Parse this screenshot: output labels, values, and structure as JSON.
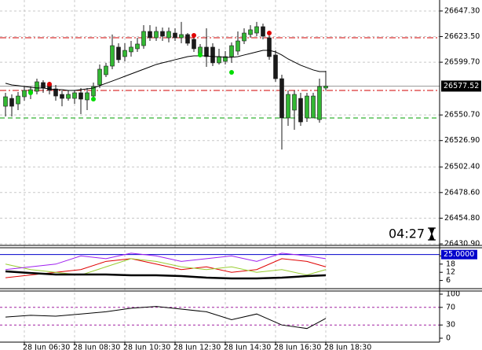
{
  "chart_data": [
    {
      "type": "candlestick",
      "categories": [
        null,
        null,
        null,
        "28 Jun 06:30",
        null,
        null,
        null,
        null,
        null,
        null,
        null,
        "28 Jun 08:30",
        null,
        null,
        null,
        null,
        null,
        null,
        null,
        "28 Jun 10:30",
        null,
        null,
        null,
        null,
        null,
        null,
        null,
        "28 Jun 12:30",
        null,
        null,
        null,
        null,
        null,
        null,
        null,
        "28 Jun 14:30",
        null,
        null,
        null,
        null,
        null,
        null,
        null,
        "28 Jun 16:30",
        null,
        null,
        null,
        null,
        null,
        null,
        null,
        "28 Jun 18:30"
      ],
      "open": [
        26558.8,
        26566.1,
        26561.0,
        26567.6,
        26571.3,
        26572.7,
        26580.8,
        26578.6,
        26574.9,
        26569.8,
        26566.1,
        26566.1,
        26571.3,
        26564.7,
        26568.3,
        26578.6,
        26588.1,
        26596.1,
        26613.7,
        26604.9,
        26609.3,
        26612.2,
        26615.1,
        26628.3,
        26622.4,
        26628.3,
        26622.4,
        26626.8,
        26622.4,
        26625.4,
        26621.0,
        26607.8,
        26613.7,
        26613.7,
        26599.1,
        26600.5,
        26604.9,
        26610.0,
        26619.5,
        26625.4,
        26626.8,
        26632.7,
        26622.4,
        26606.4,
        26584.4,
        26547.9,
        26555.2,
        26566.1,
        26547.9,
        26547.9,
        26546.4,
        26575.7
      ],
      "high": [
        26571.3,
        26569.8,
        26572.0,
        26577.1,
        26577.1,
        26584.4,
        26583.0,
        26581.5,
        26578.6,
        26573.5,
        26573.5,
        26573.5,
        26575.7,
        26575.7,
        26580.8,
        26597.6,
        26599.1,
        26625.4,
        26617.3,
        26617.3,
        26619.5,
        26622.4,
        26634.1,
        26634.1,
        26632.7,
        26631.9,
        26631.9,
        26631.2,
        26637.1,
        26626.8,
        26625.4,
        26616.6,
        26631.2,
        26617.3,
        26612.2,
        26610.0,
        26618.1,
        26628.3,
        26631.2,
        26634.1,
        26637.1,
        26635.6,
        26626.8,
        26610.7,
        26588.1,
        26573.5,
        26573.5,
        26571.3,
        26571.3,
        26571.3,
        26584.4,
        26591.7
      ],
      "low": [
        26549.3,
        26549.3,
        26555.2,
        26564.0,
        26565.4,
        26569.8,
        26571.3,
        26569.8,
        26564.0,
        26558.8,
        26564.0,
        26561.0,
        26551.5,
        26555.2,
        26564.0,
        26575.7,
        26585.9,
        26593.2,
        26599.1,
        26600.5,
        26604.9,
        26609.3,
        26612.2,
        26619.5,
        26619.5,
        26619.5,
        26618.1,
        26619.5,
        26617.3,
        26615.1,
        26609.3,
        26604.9,
        26595.4,
        26596.1,
        26597.6,
        26597.6,
        26599.1,
        26606.4,
        26616.6,
        26622.4,
        26623.9,
        26621.0,
        26602.0,
        26581.5,
        26518.6,
        26540.6,
        26536.9,
        26540.6,
        26544.2,
        26547.9,
        26543.5,
        26573.5
      ],
      "close": [
        26567.6,
        26558.8,
        26568.3,
        26573.5,
        26574.2,
        26581.5,
        26575.7,
        26573.5,
        26568.3,
        26566.1,
        26569.8,
        26571.3,
        26565.4,
        26571.3,
        26577.1,
        26593.2,
        26596.1,
        26615.1,
        26602.0,
        26610.7,
        26613.7,
        26616.6,
        26628.3,
        26622.4,
        26628.3,
        26623.9,
        26628.3,
        26622.4,
        26625.4,
        26617.3,
        26612.2,
        26613.7,
        26604.9,
        26599.1,
        26604.9,
        26604.9,
        26615.1,
        26619.5,
        26626.8,
        26629.8,
        26632.7,
        26623.9,
        26604.9,
        26584.4,
        26547.9,
        26569.8,
        26569.8,
        26544.2,
        26568.3,
        26568.3,
        26577.1,
        26577.52
      ],
      "color_up": "#33b833",
      "color_down": "#1a1a1a",
      "ma": {
        "color": "#000000",
        "values": [
          26580.1,
          26578.6,
          26577.9,
          26577.1,
          26576.4,
          26575.7,
          26575.7,
          26574.9,
          26574.2,
          26574.2,
          26573.5,
          26573.5,
          26574.2,
          26574.9,
          26575.7,
          26577.9,
          26580.1,
          26582.2,
          26584.4,
          26586.6,
          26588.8,
          26591.0,
          26593.2,
          26595.4,
          26597.6,
          26599.1,
          26600.5,
          26602.0,
          26603.4,
          26604.9,
          26605.6,
          26605.6,
          26605.6,
          26604.9,
          26604.9,
          26604.2,
          26604.2,
          26604.9,
          26606.4,
          26607.8,
          26609.3,
          26610.7,
          26610.7,
          26609.3,
          26606.4,
          26602.7,
          26599.8,
          26596.9,
          26594.7,
          26592.5,
          26591.0,
          26591.0
        ]
      },
      "buy_signals": {
        "color": "#00dd00",
        "values": [
          null,
          null,
          null,
          null,
          26571.3,
          null,
          null,
          null,
          null,
          null,
          null,
          null,
          null,
          null,
          26565.4,
          null,
          null,
          null,
          null,
          null,
          null,
          null,
          null,
          null,
          null,
          null,
          null,
          null,
          null,
          null,
          null,
          26606.4,
          null,
          null,
          null,
          null,
          26590.3,
          null,
          null,
          null,
          null,
          null,
          null,
          null,
          null,
          null,
          null,
          null,
          null,
          null,
          null,
          null
        ]
      },
      "sell_signals": {
        "color": "#e00000",
        "values": [
          null,
          null,
          null,
          null,
          null,
          null,
          null,
          26579.3,
          null,
          null,
          null,
          null,
          null,
          null,
          null,
          null,
          null,
          null,
          null,
          null,
          null,
          null,
          null,
          null,
          null,
          null,
          null,
          null,
          null,
          null,
          26624.6,
          null,
          null,
          null,
          null,
          null,
          null,
          null,
          null,
          null,
          null,
          null,
          26626.8,
          null,
          null,
          null,
          null,
          null,
          null,
          null,
          null,
          null
        ]
      },
      "levels": [
        {
          "value": 26622.4,
          "color": "#d00000",
          "dash": "8 3 2 3"
        },
        {
          "value": 26573.5,
          "color": "#d00000",
          "dash": "8 3 2 3"
        },
        {
          "value": 26547.9,
          "color": "#00a000",
          "dash": "6 4"
        }
      ],
      "last_price": 26577.52,
      "ylim": [
        26429.5,
        26657.5
      ],
      "yticks": [
        {
          "value": 26647.3,
          "label": "26647.30"
        },
        {
          "value": 26623.5,
          "label": "26623.50"
        },
        {
          "value": 26599.7,
          "label": "26599.70"
        },
        {
          "value": 26550.7,
          "label": "26550.70"
        },
        {
          "value": 26526.9,
          "label": "26526.90"
        },
        {
          "value": 26502.4,
          "label": "26502.40"
        },
        {
          "value": 26478.6,
          "label": "26478.60"
        },
        {
          "value": 26454.8,
          "label": "26454.80"
        },
        {
          "value": 26430.9,
          "label": "26430.90"
        }
      ],
      "grid": true,
      "timer": "04:27"
    },
    {
      "type": "line",
      "x": [
        0,
        4,
        8,
        12,
        16,
        20,
        24,
        28,
        32,
        36,
        40,
        44,
        48,
        51
      ],
      "series": [
        {
          "color": "#e00000",
          "width": 1,
          "values": [
            8,
            10,
            12,
            14,
            20,
            22,
            18,
            14,
            16,
            12,
            14,
            22,
            20,
            16
          ]
        },
        {
          "color": "#9acd32",
          "width": 1,
          "values": [
            18,
            14,
            12,
            10,
            16,
            22,
            20,
            16,
            14,
            16,
            12,
            14,
            10,
            14
          ]
        },
        {
          "color": "#a020f0",
          "width": 1,
          "values": [
            14,
            16,
            18,
            24,
            22,
            26,
            24,
            20,
            22,
            24,
            20,
            26,
            24,
            22
          ]
        },
        {
          "color": "#000000",
          "width": 2.5,
          "values": [
            12.7,
            11.5,
            10.4,
            10.4,
            10.4,
            9.8,
            9.8,
            9.2,
            8.1,
            7.5,
            7.5,
            8.1,
            9.2,
            9.8
          ]
        }
      ],
      "ylim": [
        0,
        30
      ],
      "yticks": [
        24,
        18,
        12,
        6
      ],
      "level": {
        "value": 25,
        "label": "25.0000",
        "color": "#0000cc"
      }
    },
    {
      "type": "line",
      "x": [
        0,
        4,
        8,
        12,
        16,
        20,
        24,
        28,
        32,
        36,
        40,
        44,
        48,
        51
      ],
      "series": [
        {
          "color": "#000000",
          "width": 1,
          "values": [
            48,
            52,
            50,
            55,
            60,
            68,
            72,
            66,
            60,
            42,
            55,
            30,
            22,
            45
          ]
        }
      ],
      "ylim": [
        0,
        100
      ],
      "yticks": [
        100,
        70,
        30,
        0
      ],
      "levels": [
        {
          "value": 70,
          "color": "#a020a0"
        },
        {
          "value": 30,
          "color": "#a020a0"
        }
      ]
    }
  ]
}
